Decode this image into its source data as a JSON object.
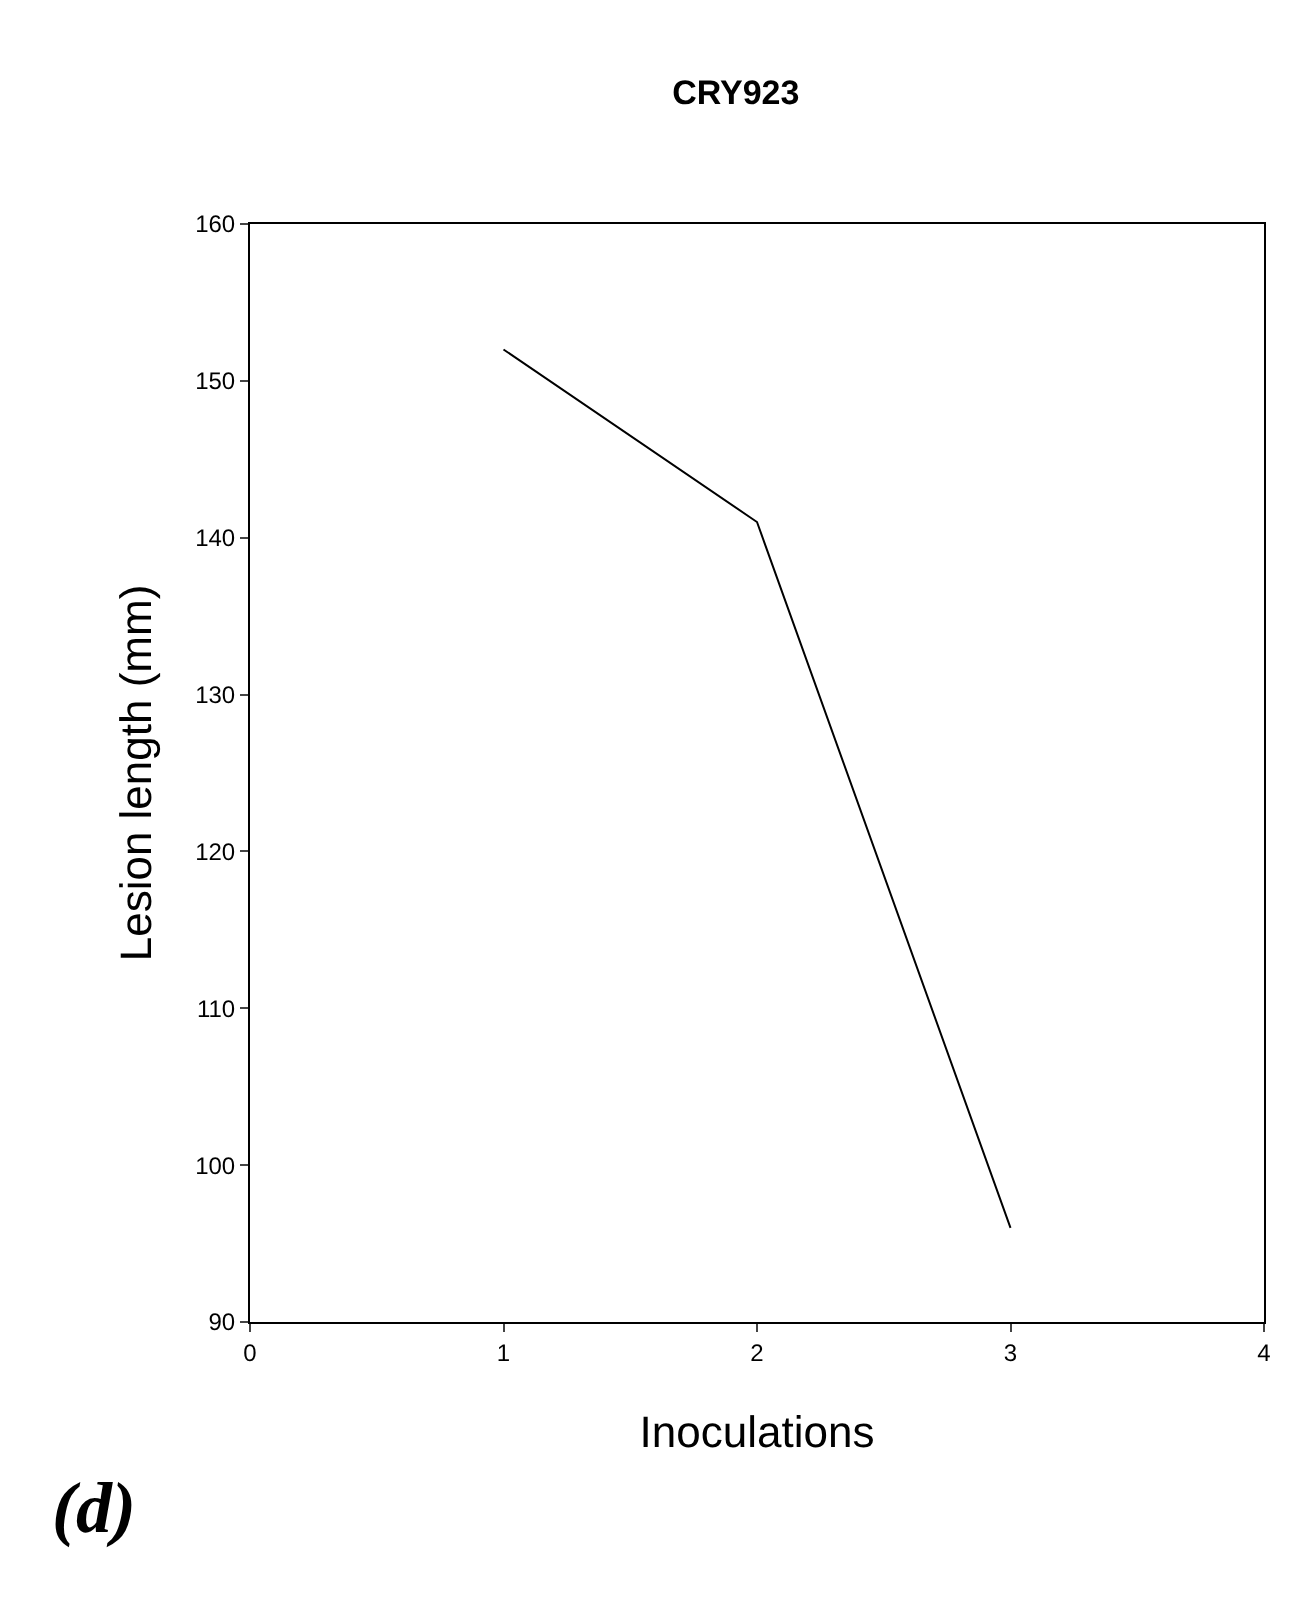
{
  "chart_data": {
    "type": "line",
    "title": "CRY923",
    "xlabel": "Inoculations",
    "ylabel": "Lesion length (mm)",
    "x": [
      1,
      2,
      3
    ],
    "series": [
      {
        "color": "#000000",
        "values": [
          152,
          141,
          96
        ]
      }
    ],
    "xlim": [
      0,
      4
    ],
    "xticks": [
      0,
      1,
      2,
      3,
      4
    ],
    "ylim": [
      90,
      160
    ],
    "yticks": [
      90,
      100,
      110,
      120,
      130,
      140,
      150,
      160
    ],
    "marker": "none",
    "line_style": "solid",
    "annotations": [
      "(d)"
    ]
  }
}
